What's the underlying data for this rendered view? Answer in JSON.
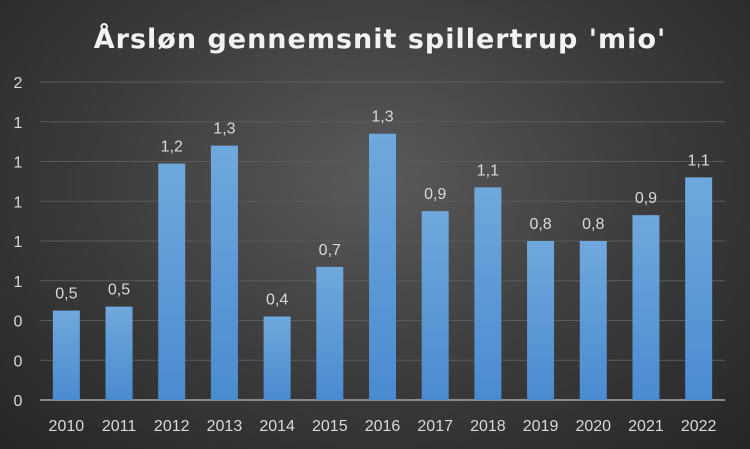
{
  "chart_data": {
    "type": "bar",
    "title": "Årsløn gennemsnit spillertrup 'mio'",
    "xlabel": "",
    "ylabel": "",
    "ylim": [
      0,
      1.6
    ],
    "grid": true,
    "legend": "none",
    "y_ticks": [
      0,
      0.2,
      0.4,
      0.6,
      0.8,
      1.0,
      1.2,
      1.4,
      1.6
    ],
    "y_tick_labels": [
      "0",
      "0",
      "0",
      "1",
      "1",
      "1",
      "1",
      "1",
      "2"
    ],
    "categories": [
      "2010",
      "2011",
      "2012",
      "2013",
      "2014",
      "2015",
      "2016",
      "2017",
      "2018",
      "2019",
      "2020",
      "2021",
      "2022"
    ],
    "values": [
      0.45,
      0.47,
      1.19,
      1.28,
      0.42,
      0.67,
      1.34,
      0.95,
      1.07,
      0.8,
      0.8,
      0.93,
      1.12
    ],
    "data_labels": [
      "0,5",
      "0,5",
      "1,2",
      "1,3",
      "0,4",
      "0,7",
      "1,3",
      "0,9",
      "1,1",
      "0,8",
      "0,8",
      "0,9",
      "1,1"
    ],
    "colors": {
      "bar_top": "#6fa8dc",
      "bar_bottom": "#4a8bd0",
      "grid": "#5a5a5a",
      "axis": "#a6a6a6"
    }
  }
}
